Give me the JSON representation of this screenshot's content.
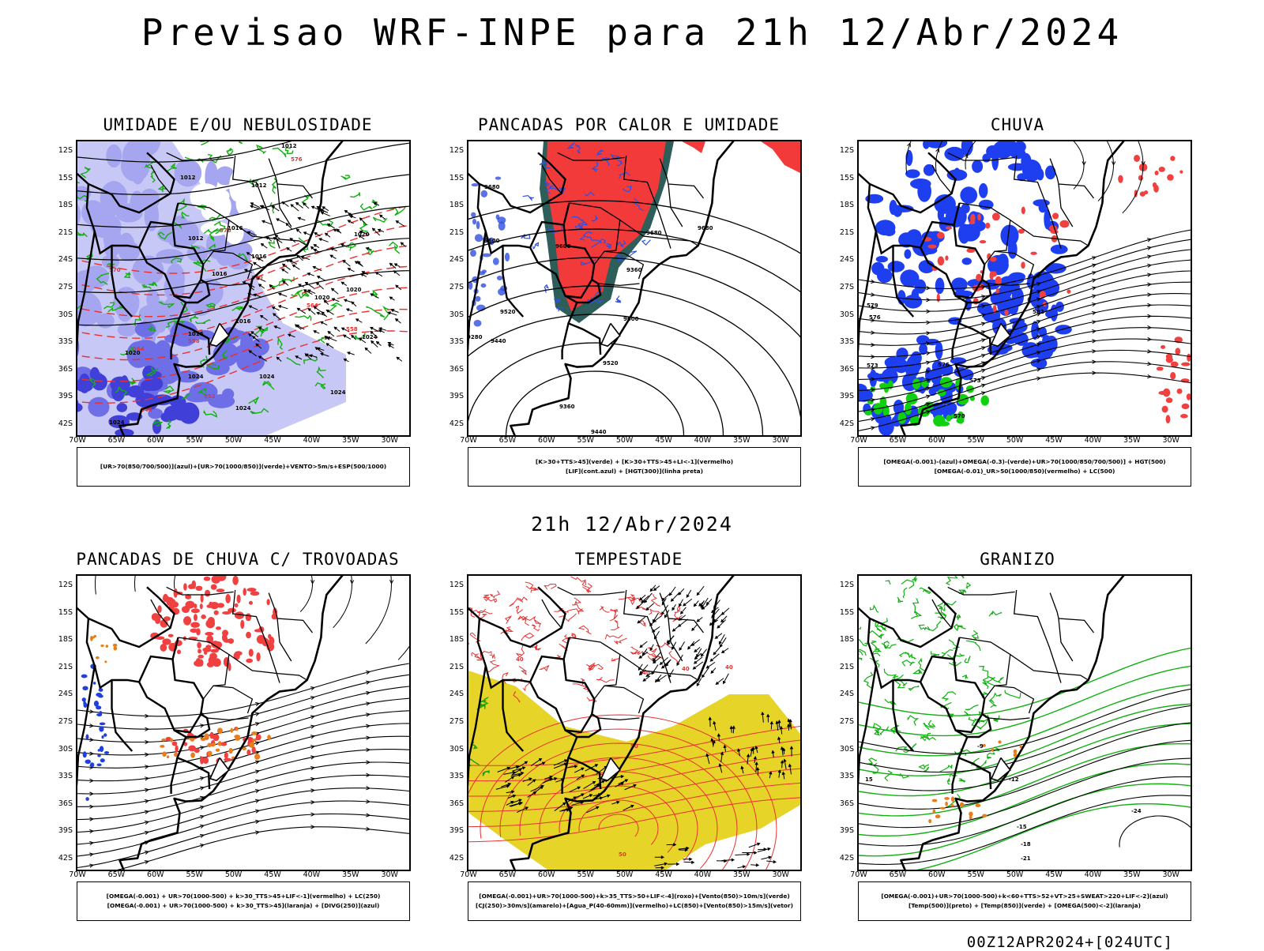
{
  "header": {
    "title": "Previsao WRF-INPE  para 21h 12/Abr/2024",
    "mid_date": "21h 12/Abr/2024",
    "run_stamp": "00Z12APR2024+[024UTC]"
  },
  "axes": {
    "lat_labels": [
      "12S",
      "15S",
      "18S",
      "21S",
      "24S",
      "27S",
      "30S",
      "33S",
      "36S",
      "39S",
      "42S"
    ],
    "lon_labels": [
      "70W",
      "65W",
      "60W",
      "55W",
      "50W",
      "45W",
      "40W",
      "35W",
      "30W"
    ]
  },
  "panels": [
    {
      "title": "UMIDADE E/OU NEBULOSIDADE",
      "caption": [
        "[UR>70(850/700/500)](azul)+[UR>70(1000/850)](verde)+VENTO>5m/s+ESP(500/1000)"
      ],
      "contour_labels": [
        "1012",
        "1012",
        "1012",
        "1012",
        "1016",
        "1016",
        "1016",
        "1016",
        "1016",
        "1020",
        "1020",
        "1020",
        "1020",
        "1024",
        "1024",
        "1024",
        "1024",
        "1024",
        "1024",
        "576",
        "576",
        "570",
        "570",
        "564",
        "564",
        "558",
        "558",
        "552",
        "546"
      ]
    },
    {
      "title": "PANCADAS POR CALOR E UMIDADE",
      "caption": [
        "[K>30+TTS>45](verde) + [K>30+TTS>45+LI<-1](vermelho)",
        "[LIF](cont.azul) + [HGT(300)](linha preta)"
      ],
      "contour_labels": [
        "9680",
        "9680",
        "9680",
        "9600",
        "9600",
        "9600",
        "9520",
        "9520",
        "9440",
        "9440",
        "9360",
        "9360",
        "9280"
      ]
    },
    {
      "title": "CHUVA",
      "caption": [
        "[OMEGA(-0.001)-(azul)+OMEGA(-0.3)-(verde)+UR>70(1000/850/700/500)] + HGT(500)",
        "[OMEGA(-0.01)_UR>50(1000/850)(vermelho) + LC(500)"
      ],
      "contour_labels": [
        "582",
        "579",
        "576",
        "576",
        "573",
        "573",
        "570"
      ]
    },
    {
      "title": "PANCADAS DE CHUVA C/ TROVOADAS",
      "caption": [
        "[OMEGA(-0.001) + UR>70(1000-500) + k>30_TTS>45+LIF<-1](vermelho) + LC(250)",
        "[OMEGA(-0.001) + UR>70(1000-500) + k>30_TTS>45](laranja) + [DIVG(250)](azul)"
      ],
      "contour_labels": []
    },
    {
      "title": "TEMPESTADE",
      "caption": [
        "[OMEGA(-0.001)+UR>70(1000-500)+k>35_TTS>50+LIF<-4](roxo)+[Vento(850)>10m/s](verde)",
        "[CJ(250)>30m/s](amarelo)+[Agua_P(40-60mm)](vermelho)+LC(850)+[Vento(850)>15m/s](vetor)"
      ],
      "contour_labels": [
        "40",
        "40",
        "40",
        "50",
        "50",
        "40"
      ]
    },
    {
      "title": "GRANIZO",
      "caption": [
        "[OMEGA(-0.001)+UR>70(1000-500)+k<60+TTS>52+VT>25+SWEAT>220+LIF<-2](azul)",
        "[Temp(500)](preto) + [Temp(850)](verde) + [OMEGA(500)<-2](laranja)"
      ],
      "contour_labels": [
        "-15",
        "-18",
        "-21",
        "-24",
        "15",
        "-9",
        "-12"
      ]
    }
  ],
  "colors": {
    "humid_blue": "#8c8cf0",
    "humid_green": "#10b010",
    "heat_red": "#f23a3a",
    "heat_teal": "#2e5e5a",
    "rain_blue": "#1e3ff0",
    "rain_green": "#10d010",
    "rain_red": "#f04040",
    "storm_orange": "#e87e1a",
    "jet_yellow": "#e6d21e",
    "contour_red": "#e83030",
    "lif_blue": "#3050e0"
  }
}
